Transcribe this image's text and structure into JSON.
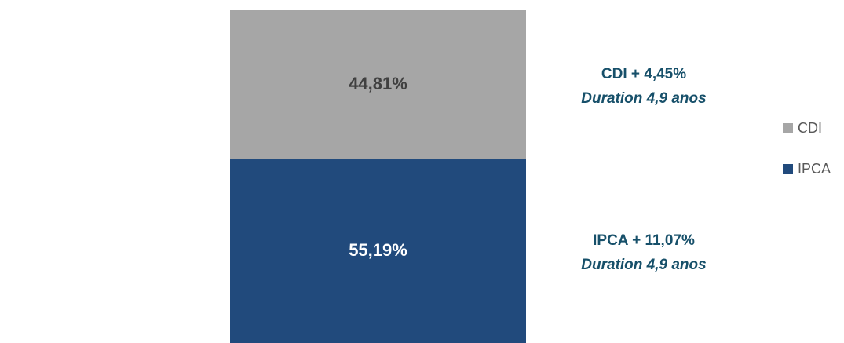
{
  "chart_data": {
    "type": "bar",
    "stacked": true,
    "categories": [
      null
    ],
    "series": [
      {
        "name": "IPCA",
        "color": "#214a7c",
        "values": [
          55.19
        ],
        "value_labels": [
          "55,19%"
        ],
        "label_color": "#ffffff",
        "annotation": [
          "IPCA + 11,07%",
          "Duration 4,9 anos"
        ]
      },
      {
        "name": "CDI",
        "color": "#a6a6a6",
        "values": [
          44.81
        ],
        "value_labels": [
          "44,81%"
        ],
        "label_color": "#404040",
        "annotation": [
          "CDI + 4,45%",
          "Duration 4,9 anos"
        ]
      }
    ],
    "annotation_color": "#17506a",
    "legend": "right"
  }
}
